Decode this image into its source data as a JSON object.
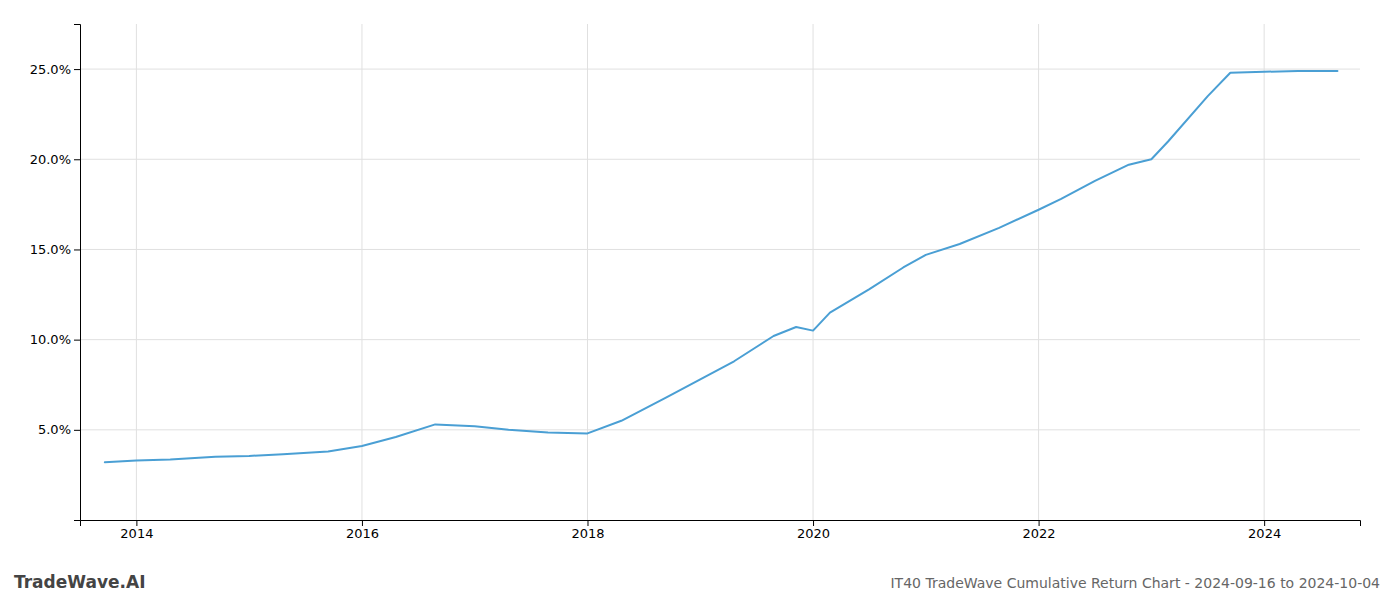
{
  "chart_data": {
    "type": "line",
    "title": "IT40 TradeWave Cumulative Return Chart - 2024-09-16 to 2024-10-04",
    "annotations": [
      "TradeWave.AI"
    ],
    "color": "#4a9fd4",
    "x": [
      2013.72,
      2014.0,
      2014.3,
      2014.7,
      2015.0,
      2015.3,
      2015.7,
      2016.0,
      2016.3,
      2016.65,
      2017.0,
      2017.3,
      2017.65,
      2018.0,
      2018.3,
      2018.7,
      2019.0,
      2019.3,
      2019.65,
      2019.85,
      2020.0,
      2020.15,
      2020.5,
      2020.8,
      2021.0,
      2021.3,
      2021.65,
      2022.0,
      2022.2,
      2022.5,
      2022.8,
      2023.0,
      2023.15,
      2023.5,
      2023.7,
      2024.0,
      2024.3,
      2024.65
    ],
    "values": [
      3.2,
      3.3,
      3.35,
      3.5,
      3.55,
      3.65,
      3.8,
      4.1,
      4.6,
      5.3,
      5.2,
      5.0,
      4.85,
      4.8,
      5.5,
      6.8,
      7.8,
      8.8,
      10.2,
      10.7,
      10.5,
      11.5,
      12.8,
      14.0,
      14.7,
      15.3,
      16.2,
      17.2,
      17.8,
      18.8,
      19.7,
      20.0,
      21.0,
      23.5,
      24.8,
      24.85,
      24.9,
      24.9
    ],
    "xlim": [
      2013.5,
      2024.85
    ],
    "ylim": [
      0,
      27.5
    ],
    "xticks": [
      2014,
      2016,
      2018,
      2020,
      2022,
      2024
    ],
    "yticks": [
      {
        "value": 5.0,
        "label": "5.0%"
      },
      {
        "value": 10.0,
        "label": "10.0%"
      },
      {
        "value": 15.0,
        "label": "15.0%"
      },
      {
        "value": 20.0,
        "label": "20.0%"
      },
      {
        "value": 25.0,
        "label": "25.0%"
      }
    ],
    "grid": true
  }
}
